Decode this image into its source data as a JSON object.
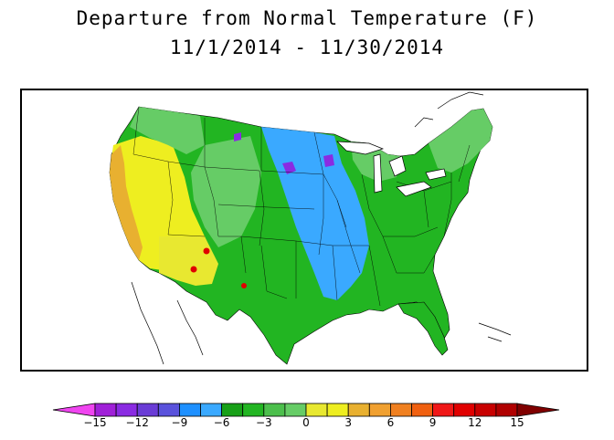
{
  "title": {
    "line1": "Departure from Normal Temperature (F)",
    "line2": "11/1/2014 - 11/30/2014"
  },
  "map": {
    "region": "Contiguous United States",
    "variable": "Departure from Normal Temperature",
    "units": "F"
  },
  "legend": {
    "tick_labels": [
      "−15",
      "−12",
      "−9",
      "−6",
      "−3",
      "0",
      "3",
      "6",
      "9",
      "12",
      "15"
    ],
    "bins": [
      {
        "range": "< -15",
        "color": "#f045f0"
      },
      {
        "range": "-15 to -13.5",
        "color": "#a020d8"
      },
      {
        "range": "-13.5 to -12",
        "color": "#8a2be2"
      },
      {
        "range": "-12 to -10.5",
        "color": "#6a3cd6"
      },
      {
        "range": "-10.5 to -9",
        "color": "#5a52dc"
      },
      {
        "range": "-9 to -7.5",
        "color": "#1e90ff"
      },
      {
        "range": "-7.5 to -6",
        "color": "#3aa9ff"
      },
      {
        "range": "-6 to -4.5",
        "color": "#18a018"
      },
      {
        "range": "-4.5 to -3",
        "color": "#22b522"
      },
      {
        "range": "-3 to -1.5",
        "color": "#4cbf4c"
      },
      {
        "range": "-1.5 to 0",
        "color": "#66cc66"
      },
      {
        "range": "0 to 1.5",
        "color": "#e8e830"
      },
      {
        "range": "1.5 to 3",
        "color": "#eeee20"
      },
      {
        "range": "3 to 4.5",
        "color": "#e8b030"
      },
      {
        "range": "4.5 to 6",
        "color": "#f0a030"
      },
      {
        "range": "6 to 7.5",
        "color": "#f08020"
      },
      {
        "range": "7.5 to 9",
        "color": "#f06010"
      },
      {
        "range": "9 to 10.5",
        "color": "#f01818"
      },
      {
        "range": "10.5 to 12",
        "color": "#e00000"
      },
      {
        "range": "12 to 13.5",
        "color": "#c80000"
      },
      {
        "range": "13.5 to 15",
        "color": "#b00000"
      },
      {
        "range": "> 15",
        "color": "#800000"
      }
    ]
  }
}
